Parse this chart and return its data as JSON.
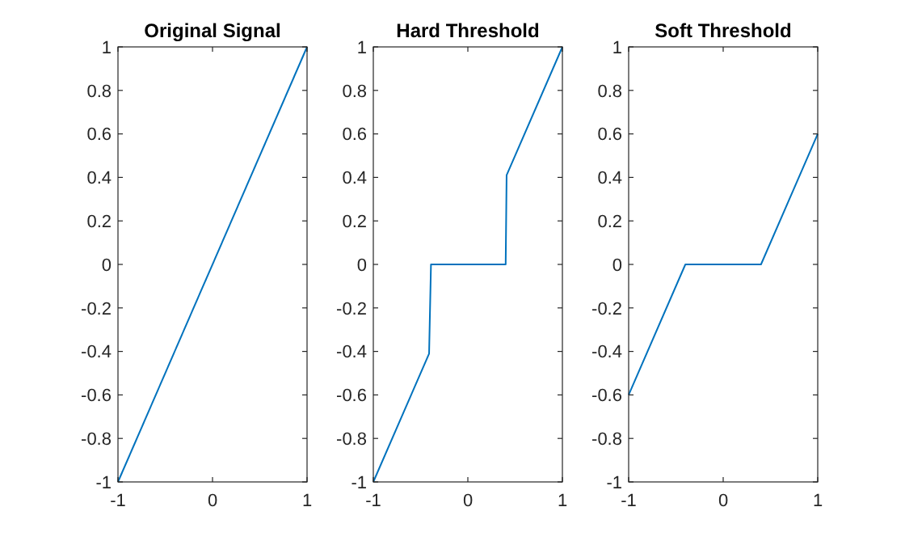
{
  "chart_data": [
    {
      "type": "line",
      "title": "Original Signal",
      "x": [
        -1,
        1
      ],
      "series": [
        {
          "color": "#0072bd",
          "values": [
            -1,
            1
          ]
        }
      ],
      "xlim": [
        -1,
        1
      ],
      "ylim": [
        -1,
        1
      ],
      "xticks": [
        -1,
        0,
        1
      ],
      "yticks": [
        -1,
        -0.8,
        -0.6,
        -0.4,
        -0.2,
        0,
        0.2,
        0.4,
        0.6,
        0.8,
        1
      ],
      "grid": false
    },
    {
      "type": "line",
      "title": "Hard Threshold",
      "x": [
        -1,
        -0.41,
        -0.39,
        0.4,
        0.41,
        1
      ],
      "series": [
        {
          "color": "#0072bd",
          "values": [
            -1,
            -0.41,
            0,
            0,
            0.41,
            1
          ]
        }
      ],
      "xlim": [
        -1,
        1
      ],
      "ylim": [
        -1,
        1
      ],
      "xticks": [
        -1,
        0,
        1
      ],
      "yticks": [
        -1,
        -0.8,
        -0.6,
        -0.4,
        -0.2,
        0,
        0.2,
        0.4,
        0.6,
        0.8,
        1
      ],
      "grid": false
    },
    {
      "type": "line",
      "title": "Soft Threshold",
      "x": [
        -1,
        -0.4,
        0.4,
        1
      ],
      "series": [
        {
          "color": "#0072bd",
          "values": [
            -0.6,
            0,
            0,
            0.6
          ]
        }
      ],
      "xlim": [
        -1,
        1
      ],
      "ylim": [
        -1,
        1
      ],
      "xticks": [
        -1,
        0,
        1
      ],
      "yticks": [
        -1,
        -0.8,
        -0.6,
        -0.4,
        -0.2,
        0,
        0.2,
        0.4,
        0.6,
        0.8,
        1
      ],
      "grid": false
    }
  ]
}
